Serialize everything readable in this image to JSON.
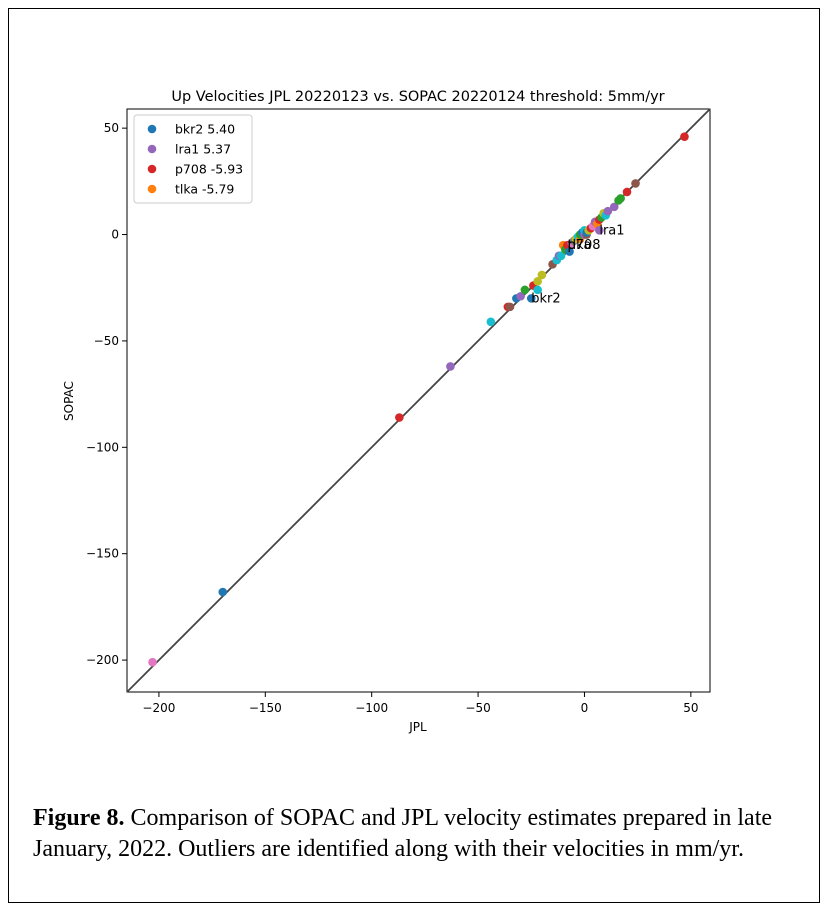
{
  "chart_data": {
    "type": "scatter",
    "title": "Up Velocities JPL 20220123 vs. SOPAC 20220124 threshold: 5mm/yr",
    "xlabel": "JPL",
    "ylabel": "SOPAC",
    "xlim": [
      -215,
      59
    ],
    "ylim": [
      -215,
      59
    ],
    "xticks": [
      -200,
      -150,
      -100,
      -50,
      0,
      50
    ],
    "yticks": [
      -200,
      -150,
      -100,
      -50,
      0,
      50
    ],
    "xtick_labels": [
      "−200",
      "−150",
      "−100",
      "−50",
      "0",
      "50"
    ],
    "ytick_labels": [
      "−200",
      "−150",
      "−100",
      "−50",
      "0",
      "50"
    ],
    "reference_line": "y = x",
    "grid": false,
    "legend_position": "upper-left",
    "legend": [
      {
        "label": "bkr2 5.40",
        "color": "#1f77b4"
      },
      {
        "label": "lra1 5.37",
        "color": "#9467bd"
      },
      {
        "label": "p708 -5.93",
        "color": "#d62728"
      },
      {
        "label": "tlka -5.79",
        "color": "#ff7f0e"
      }
    ],
    "annotations": [
      {
        "text": "p708",
        "x": -8,
        "y": -5
      },
      {
        "text": "tlka",
        "x": -8,
        "y": -5
      },
      {
        "text": "lra1",
        "x": 7,
        "y": 2
      },
      {
        "text": "bkr2",
        "x": -25,
        "y": -30
      }
    ],
    "points": [
      {
        "x": -203,
        "y": -201,
        "color": "#e377c2"
      },
      {
        "x": -170,
        "y": -168,
        "color": "#1f77b4"
      },
      {
        "x": -87,
        "y": -86,
        "color": "#d62728"
      },
      {
        "x": -63,
        "y": -62,
        "color": "#9467bd"
      },
      {
        "x": -44,
        "y": -41,
        "color": "#17becf"
      },
      {
        "x": -36,
        "y": -34,
        "color": "#d62728"
      },
      {
        "x": -35,
        "y": -34,
        "color": "#8c564b"
      },
      {
        "x": -32,
        "y": -30,
        "color": "#1f77b4"
      },
      {
        "x": -30,
        "y": -29,
        "color": "#9467bd"
      },
      {
        "x": -28,
        "y": -26,
        "color": "#2ca02c"
      },
      {
        "x": -25,
        "y": -30,
        "color": "#1f77b4"
      },
      {
        "x": -24,
        "y": -24,
        "color": "#d62728"
      },
      {
        "x": -22,
        "y": -26,
        "color": "#17becf"
      },
      {
        "x": -22,
        "y": -22,
        "color": "#bcbd22"
      },
      {
        "x": -20,
        "y": -19,
        "color": "#bcbd22"
      },
      {
        "x": -15,
        "y": -14,
        "color": "#8c564b"
      },
      {
        "x": -13,
        "y": -12,
        "color": "#17becf"
      },
      {
        "x": -12,
        "y": -10,
        "color": "#9467bd"
      },
      {
        "x": -11,
        "y": -10,
        "color": "#17becf"
      },
      {
        "x": -10,
        "y": -5,
        "color": "#ff7f0e"
      },
      {
        "x": -9,
        "y": -7,
        "color": "#2ca02c"
      },
      {
        "x": -8,
        "y": -5,
        "color": "#d62728"
      },
      {
        "x": -7,
        "y": -8,
        "color": "#1f77b4"
      },
      {
        "x": -6,
        "y": -4,
        "color": "#e377c2"
      },
      {
        "x": -5,
        "y": -3,
        "color": "#7f7f7f"
      },
      {
        "x": -4,
        "y": -2,
        "color": "#bcbd22"
      },
      {
        "x": -3,
        "y": -1,
        "color": "#17becf"
      },
      {
        "x": -2,
        "y": -2,
        "color": "#ff7f0e"
      },
      {
        "x": -2,
        "y": 0,
        "color": "#2ca02c"
      },
      {
        "x": -1,
        "y": 1,
        "color": "#1f77b4"
      },
      {
        "x": 0,
        "y": 0,
        "color": "#9467bd"
      },
      {
        "x": 0,
        "y": 2,
        "color": "#17becf"
      },
      {
        "x": 1,
        "y": 0,
        "color": "#8c564b"
      },
      {
        "x": 1,
        "y": 1,
        "color": "#1f77b4"
      },
      {
        "x": 2,
        "y": 2,
        "color": "#bcbd22"
      },
      {
        "x": 3,
        "y": 3,
        "color": "#d62728"
      },
      {
        "x": 4,
        "y": 4,
        "color": "#e377c2"
      },
      {
        "x": 5,
        "y": 6,
        "color": "#9467bd"
      },
      {
        "x": 6,
        "y": 5,
        "color": "#ff7f0e"
      },
      {
        "x": 7,
        "y": 2,
        "color": "#9467bd"
      },
      {
        "x": 7,
        "y": 7,
        "color": "#d62728"
      },
      {
        "x": 8,
        "y": 8,
        "color": "#2ca02c"
      },
      {
        "x": 9,
        "y": 10,
        "color": "#bcbd22"
      },
      {
        "x": 10,
        "y": 9,
        "color": "#17becf"
      },
      {
        "x": 11,
        "y": 11,
        "color": "#9467bd"
      },
      {
        "x": 14,
        "y": 13,
        "color": "#9467bd"
      },
      {
        "x": 16,
        "y": 16,
        "color": "#2ca02c"
      },
      {
        "x": 17,
        "y": 17,
        "color": "#2ca02c"
      },
      {
        "x": 20,
        "y": 20,
        "color": "#d62728"
      },
      {
        "x": 24,
        "y": 24,
        "color": "#8c564b"
      },
      {
        "x": 47,
        "y": 46,
        "color": "#d62728"
      }
    ]
  },
  "caption": {
    "label": "Figure 8.",
    "text": " Comparison of SOPAC and JPL velocity estimates prepared in late January, 2022. Outliers are identified along with their velocities in mm/yr."
  }
}
